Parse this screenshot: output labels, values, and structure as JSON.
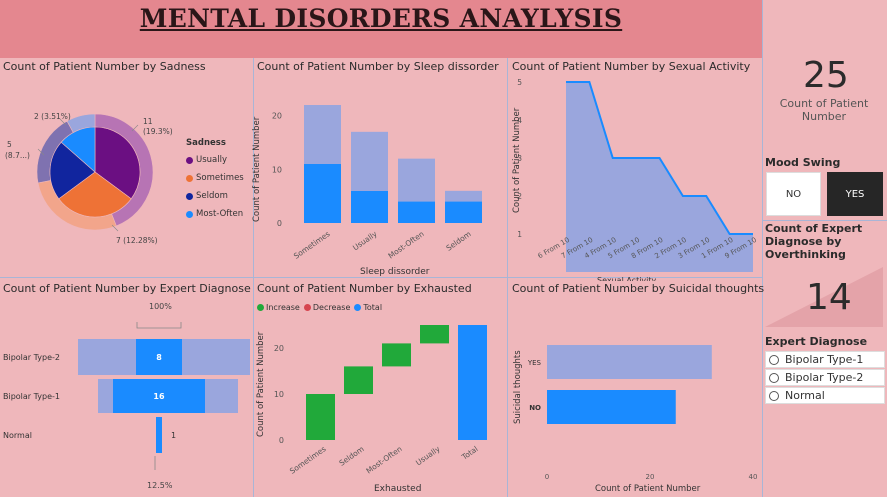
{
  "header": {
    "title": "MENTAL DISORDERS ANAYLYSIS"
  },
  "colors": {
    "purple": "#6b0f82",
    "orange": "#ee7236",
    "navy": "#11259e",
    "blue": "#1a8bff",
    "lightblue": "#9aa6dd",
    "green": "#21a93a",
    "red": "#d64550"
  },
  "sadness_pie": {
    "title": "Count of Patient Number by Sadness",
    "legend_title": "Sadness",
    "legend": [
      "Usually",
      "Sometimes",
      "Seldom",
      "Most-Often"
    ],
    "labels": {
      "top_left": "2 (3.51%)",
      "left_1": "5",
      "left_2": "(8.7...)",
      "top_right_1": "11",
      "top_right_2": "(19.3%)",
      "bottom_right": "7 (12.28%)"
    }
  },
  "sleep_chart": {
    "title": "Count of Patient Number by Sleep dissorder",
    "xlabel": "Sleep dissorder",
    "ylabel": "Count of Patient Number",
    "ticks": [
      "0",
      "10",
      "20"
    ]
  },
  "sexual_chart": {
    "title": "Count of Patient Number by Sexual Activity",
    "xlabel": "Sexual Activity",
    "ylabel": "Count of Patient Number",
    "ticks": [
      "1",
      "2",
      "3",
      "4",
      "5"
    ]
  },
  "expert_funnel": {
    "title": "Count of Patient Number by Expert Diagnose",
    "top_pct": "100%",
    "bottom_pct": "12.5%"
  },
  "exhausted_chart": {
    "title": "Count of Patient Number by Exhausted",
    "xlabel": "Exhausted",
    "ylabel": "Count of Patient Number",
    "legend": [
      "Increase",
      "Decrease",
      "Total"
    ],
    "ticks": [
      "0",
      "10",
      "20"
    ]
  },
  "suicidal_chart": {
    "title": "Count of Patient Number by Suicidal thoughts",
    "xlabel": "Count of Patient Number",
    "ylabel": "Suicidal thoughts",
    "ticks": [
      "0",
      "20",
      "40"
    ]
  },
  "card1": {
    "value": "25",
    "label_1": "Count of Patient",
    "label_2": "Number"
  },
  "mood_slicer": {
    "title": "Mood Swing",
    "options": [
      "NO",
      "YES"
    ],
    "selected": "YES"
  },
  "card2": {
    "label_1": "Count of Expert",
    "label_2": "Diagnose by",
    "label_3": "Overthinking",
    "value": "14"
  },
  "expert_slicer": {
    "title": "Expert Diagnose",
    "options": [
      "Bipolar Type-1",
      "Bipolar Type-2",
      "Normal"
    ]
  },
  "chart_data": [
    {
      "type": "pie",
      "title": "Count of Patient Number by Sadness",
      "legend_title": "Sadness",
      "categories": [
        "Usually",
        "Sometimes",
        "Seldom",
        "Most-Often"
      ],
      "inner_values": [
        13,
        11,
        8,
        5
      ],
      "outer_values": [
        11,
        7,
        5,
        2
      ]
    },
    {
      "type": "bar",
      "title": "Count of Patient Number by Sleep dissorder",
      "categories": [
        "Sometimes",
        "Usually",
        "Most-Often",
        "Seldom"
      ],
      "series": [
        {
          "name": "",
          "values": [
            11,
            6,
            4,
            4
          ]
        },
        {
          "name": "",
          "values": [
            11,
            11,
            8,
            2
          ]
        }
      ],
      "xlabel": "Sleep dissorder",
      "ylabel": "Count of Patient Number",
      "ylim": [
        0,
        22
      ]
    },
    {
      "type": "area",
      "title": "Count of Patient Number by Sexual Activity",
      "categories": [
        "6 From 10",
        "7 From 10",
        "4 From 10",
        "5 From 10",
        "8 From 10",
        "2 From 10",
        "3 From 10",
        "1 From 10",
        "9 From 10"
      ],
      "values": [
        5,
        5,
        3,
        3,
        3,
        2,
        2,
        1,
        1
      ],
      "xlabel": "Sexual Activity",
      "ylabel": "Count of Patient Number"
    },
    {
      "type": "bar",
      "title": "Count of Patient Number by Expert Diagnose",
      "categories": [
        "Bipolar Type-2",
        "Bipolar Type-1",
        "Normal"
      ],
      "values": [
        8,
        16,
        1
      ]
    },
    {
      "type": "bar",
      "title": "Count of Patient Number by Exhausted",
      "categories": [
        "Sometimes",
        "Seldom",
        "Most-Often",
        "Usually",
        "Total"
      ],
      "values": [
        10,
        6,
        5,
        4,
        25
      ],
      "legend": [
        "Increase",
        "Decrease",
        "Total"
      ],
      "xlabel": "Exhausted",
      "ylabel": "Count of Patient Number"
    },
    {
      "type": "bar",
      "title": "Count of Patient Number by Suicidal thoughts",
      "categories": [
        "YES",
        "NO"
      ],
      "values": [
        32,
        25
      ],
      "xlabel": "Count of Patient Number",
      "ylabel": "Suicidal thoughts",
      "xlim": [
        0,
        40
      ]
    }
  ]
}
